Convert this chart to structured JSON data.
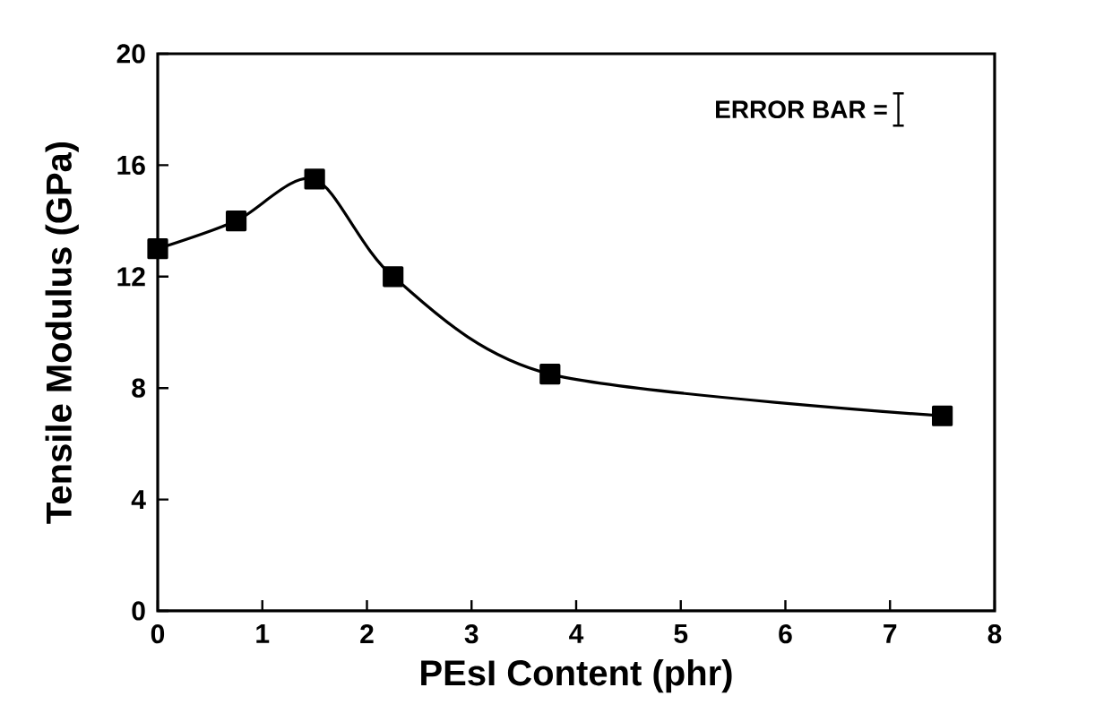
{
  "chart_data": {
    "type": "line",
    "xlabel": "PEsI Content (phr)",
    "ylabel": "Tensile Modulus (GPa)",
    "annotations": [
      "ERROR BAR ="
    ],
    "x": [
      0,
      0.75,
      1.5,
      2.25,
      3.75,
      7.5
    ],
    "series": [
      {
        "color": "#000000",
        "values": [
          13,
          14,
          15.5,
          12,
          8.5,
          7
        ]
      }
    ],
    "xlim": [
      0,
      8
    ],
    "xticks": [
      0,
      1,
      2,
      3,
      4,
      5,
      6,
      7,
      8
    ],
    "ylim": [
      0,
      20
    ],
    "yticks": [
      0,
      4,
      8,
      12,
      16,
      20
    ],
    "marker": "square",
    "line_style": "solid",
    "grid": false
  }
}
